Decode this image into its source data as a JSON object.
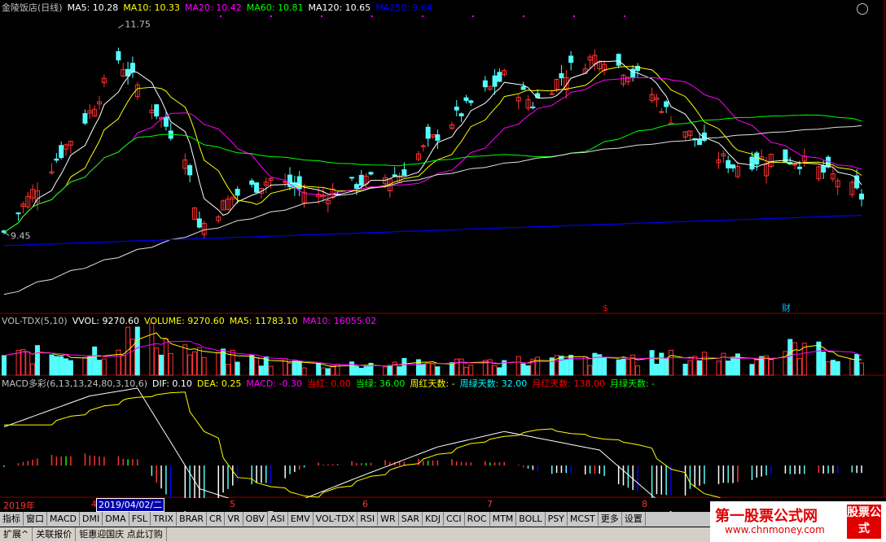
{
  "title": {
    "stock": "金陵饭店(日线)",
    "ma": [
      {
        "label": "MA5: 10.28",
        "color": "#ffffff"
      },
      {
        "label": "MA10: 10.33",
        "color": "#ffff00"
      },
      {
        "label": "MA20: 10.42",
        "color": "#ff00ff"
      },
      {
        "label": "MA60: 10.81",
        "color": "#00ff00"
      },
      {
        "label": "MA120: 10.65",
        "color": "#ffffff"
      },
      {
        "label": "MA250: 9.64",
        "color": "#0000ff"
      }
    ]
  },
  "price_panel": {
    "high_label": "11.75",
    "low_label": "9.45",
    "markers": [
      {
        "text": "$",
        "color": "#ff0000"
      },
      {
        "text": "财",
        "color": "#00bfff"
      }
    ]
  },
  "vol_panel": {
    "items": [
      {
        "label": "VOL-TDX(5,10)",
        "color": "#c0c0c0"
      },
      {
        "label": "VVOL: 9270.60",
        "color": "#ffffff"
      },
      {
        "label": "VOLUME: 9270.60",
        "color": "#ffff00"
      },
      {
        "label": "MA5: 11783.10",
        "color": "#ffff00"
      },
      {
        "label": "MA10: 16055.02",
        "color": "#ff00ff"
      }
    ]
  },
  "macd_panel": {
    "items": [
      {
        "label": "MACD多彩(6,13,13,24,80,3,10,6)",
        "color": "#c0c0c0"
      },
      {
        "label": "DIF: 0.10",
        "color": "#ffffff"
      },
      {
        "label": "DEA: 0.25",
        "color": "#ffff00"
      },
      {
        "label": "MACD: -0.30",
        "color": "#ff00ff"
      },
      {
        "label": "当红: 0.00",
        "color": "#ff0000"
      },
      {
        "label": "当绿: 36.00",
        "color": "#00ff00"
      },
      {
        "label": "周红天数: -",
        "color": "#ffff00"
      },
      {
        "label": "周绿天数: 32.00",
        "color": "#00ffff"
      },
      {
        "label": "月红天数: 138.00",
        "color": "#ff0000"
      },
      {
        "label": "月绿天数: -",
        "color": "#00ff00"
      }
    ]
  },
  "axis": {
    "year": "2019年",
    "months": [
      "4",
      "5",
      "6",
      "7",
      "8"
    ],
    "cursor_date": "2019/04/02/二"
  },
  "indicator_tabs": [
    "指标",
    "窗口",
    "MACD",
    "DMI",
    "DMA",
    "FSL",
    "TRIX",
    "BRAR",
    "CR",
    "VR",
    "OBV",
    "ASI",
    "EMV",
    "VOL-TDX",
    "RSI",
    "WR",
    "SAR",
    "KDJ",
    "CCI",
    "ROC",
    "MTM",
    "BOLL",
    "PSY",
    "MCST",
    "更多",
    "设置"
  ],
  "bottom_bar": [
    "扩展^",
    "关联报价",
    "钜惠迎国庆 点此订购"
  ],
  "watermark": {
    "title": "第一股票公式网",
    "url": "www.chnmoney.com",
    "stamp": "股票公式"
  },
  "colors": {
    "up": "#ff3232",
    "down": "#54fcfc",
    "bg": "#000000",
    "grid": "#8b0000"
  },
  "chart_data": [
    {
      "type": "candlestick",
      "title": "金陵饭店(日线)",
      "x_range": [
        "2019-03-29",
        "2019-09-25"
      ],
      "ylim": [
        8.6,
        11.9
      ],
      "annotations": [
        {
          "text": "11.75",
          "value": 11.75
        },
        {
          "text": "9.45",
          "value": 9.45
        }
      ],
      "series": [
        {
          "name": "MA5",
          "last": 10.28
        },
        {
          "name": "MA10",
          "last": 10.33
        },
        {
          "name": "MA20",
          "last": 10.42
        },
        {
          "name": "MA60",
          "last": 10.81
        },
        {
          "name": "MA120",
          "last": 10.65
        },
        {
          "name": "MA250",
          "last": 9.64
        }
      ],
      "anchors": [
        [
          "2019-03-29",
          9.45
        ],
        [
          "2019-04-08",
          10.2
        ],
        [
          "2019-04-16",
          10.8
        ],
        [
          "2019-04-22",
          11.4
        ],
        [
          "2019-04-26",
          11.1
        ],
        [
          "2019-05-06",
          10.35
        ],
        [
          "2019-05-09",
          9.5
        ],
        [
          "2019-05-16",
          9.85
        ],
        [
          "2019-05-24",
          10.05
        ],
        [
          "2019-06-03",
          9.85
        ],
        [
          "2019-06-11",
          10.0
        ],
        [
          "2019-06-20",
          10.1
        ],
        [
          "2019-06-28",
          10.55
        ],
        [
          "2019-07-05",
          10.9
        ],
        [
          "2019-07-12",
          11.2
        ],
        [
          "2019-07-18",
          10.9
        ],
        [
          "2019-07-26",
          11.3
        ],
        [
          "2019-08-01",
          11.45
        ],
        [
          "2019-08-09",
          11.2
        ],
        [
          "2019-08-16",
          10.75
        ],
        [
          "2019-08-23",
          10.4
        ],
        [
          "2019-08-29",
          10.2
        ],
        [
          "2019-09-06",
          10.3
        ],
        [
          "2019-09-12",
          10.25
        ],
        [
          "2019-09-20",
          10.05
        ],
        [
          "2019-09-25",
          9.85
        ]
      ]
    },
    {
      "type": "bar",
      "title": "VOL-TDX(5,10)",
      "series": [
        {
          "name": "VOLUME",
          "last": 9270.6
        },
        {
          "name": "MA5",
          "last": 11783.1
        },
        {
          "name": "MA10",
          "last": 16055.02
        }
      ],
      "anchors": [
        [
          "2019-03-29",
          13000
        ],
        [
          "2019-04-16",
          16000
        ],
        [
          "2019-04-22",
          21000
        ],
        [
          "2019-04-26",
          30000
        ],
        [
          "2019-05-09",
          14000
        ],
        [
          "2019-06-03",
          7000
        ],
        [
          "2019-07-05",
          9000
        ],
        [
          "2019-08-01",
          11000
        ],
        [
          "2019-09-06",
          14000
        ],
        [
          "2019-09-12",
          20000
        ],
        [
          "2019-09-25",
          9270
        ]
      ]
    },
    {
      "type": "bar",
      "title": "MACD多彩(6,13,13,24,80,3,10,6)",
      "series": [
        {
          "name": "DIF",
          "last": 0.1
        },
        {
          "name": "DEA",
          "last": 0.25
        },
        {
          "name": "MACD",
          "last": -0.3
        }
      ],
      "anchors": [
        [
          "2019-03-29",
          0.25
        ],
        [
          "2019-04-16",
          0.45
        ],
        [
          "2019-04-26",
          0.5
        ],
        [
          "2019-05-09",
          -0.15
        ],
        [
          "2019-05-24",
          -0.3
        ],
        [
          "2019-06-11",
          -0.08
        ],
        [
          "2019-06-28",
          0.12
        ],
        [
          "2019-07-12",
          0.22
        ],
        [
          "2019-08-01",
          0.1
        ],
        [
          "2019-08-16",
          -0.3
        ],
        [
          "2019-08-29",
          -0.4
        ],
        [
          "2019-09-12",
          -0.35
        ],
        [
          "2019-09-25",
          -0.3
        ]
      ]
    }
  ]
}
